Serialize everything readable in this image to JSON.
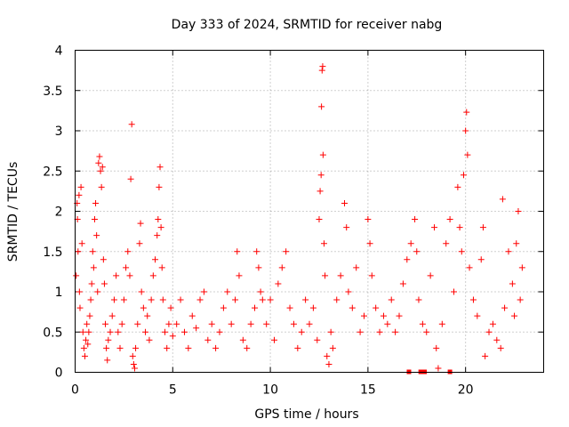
{
  "chart_data": {
    "type": "scatter",
    "title": "Day 333 of 2024, SRMTID for receiver nabg",
    "xlabel": "GPS time / hours",
    "ylabel": "SRMTID / TECUs",
    "xlim": [
      0,
      24
    ],
    "ylim": [
      0,
      4
    ],
    "xticks": [
      0,
      5,
      10,
      15,
      20
    ],
    "xtick_labels": [
      "0",
      "5",
      "10",
      "15",
      "20"
    ],
    "yticks": [
      0,
      0.5,
      1,
      1.5,
      2,
      2.5,
      3,
      3.5,
      4
    ],
    "ytick_labels": [
      "0",
      "0.5",
      "1",
      "1.5",
      "2",
      "2.5",
      "3",
      "3.5",
      "4"
    ],
    "grid": true,
    "marker": "+",
    "color": "#ff0000",
    "series": [
      {
        "name": "nabg",
        "points": [
          [
            0.05,
            1.2
          ],
          [
            0.1,
            2.1
          ],
          [
            0.12,
            1.9
          ],
          [
            0.15,
            1.5
          ],
          [
            0.2,
            2.2
          ],
          [
            0.22,
            1.0
          ],
          [
            0.25,
            0.8
          ],
          [
            0.3,
            2.3
          ],
          [
            0.35,
            1.6
          ],
          [
            0.4,
            0.5
          ],
          [
            0.45,
            0.3
          ],
          [
            0.5,
            0.2
          ],
          [
            0.55,
            0.4
          ],
          [
            0.6,
            0.6
          ],
          [
            0.65,
            0.35
          ],
          [
            0.7,
            0.5
          ],
          [
            0.75,
            0.7
          ],
          [
            0.8,
            0.9
          ],
          [
            0.85,
            1.1
          ],
          [
            0.9,
            1.5
          ],
          [
            0.95,
            1.3
          ],
          [
            1.0,
            1.9
          ],
          [
            1.05,
            2.1
          ],
          [
            1.1,
            1.7
          ],
          [
            1.15,
            1.0
          ],
          [
            1.2,
            2.6
          ],
          [
            1.25,
            2.68
          ],
          [
            1.3,
            2.5
          ],
          [
            1.35,
            2.3
          ],
          [
            1.4,
            2.55
          ],
          [
            1.45,
            1.4
          ],
          [
            1.5,
            1.1
          ],
          [
            1.55,
            0.6
          ],
          [
            1.6,
            0.3
          ],
          [
            1.65,
            0.15
          ],
          [
            1.7,
            0.4
          ],
          [
            1.8,
            0.5
          ],
          [
            1.9,
            0.7
          ],
          [
            2.0,
            0.9
          ],
          [
            2.1,
            1.2
          ],
          [
            2.2,
            0.5
          ],
          [
            2.3,
            0.3
          ],
          [
            2.4,
            0.6
          ],
          [
            2.5,
            0.9
          ],
          [
            2.6,
            1.3
          ],
          [
            2.7,
            1.5
          ],
          [
            2.8,
            1.2
          ],
          [
            2.85,
            2.4
          ],
          [
            2.9,
            3.08
          ],
          [
            2.95,
            0.2
          ],
          [
            3.0,
            0.1
          ],
          [
            3.05,
            0.05
          ],
          [
            3.1,
            0.3
          ],
          [
            3.2,
            0.6
          ],
          [
            3.3,
            1.6
          ],
          [
            3.35,
            1.85
          ],
          [
            3.4,
            1.0
          ],
          [
            3.5,
            0.8
          ],
          [
            3.6,
            0.5
          ],
          [
            3.7,
            0.7
          ],
          [
            3.8,
            0.4
          ],
          [
            3.9,
            0.9
          ],
          [
            4.0,
            1.2
          ],
          [
            4.1,
            1.4
          ],
          [
            4.2,
            1.7
          ],
          [
            4.25,
            1.9
          ],
          [
            4.3,
            2.3
          ],
          [
            4.35,
            2.55
          ],
          [
            4.4,
            1.8
          ],
          [
            4.45,
            1.3
          ],
          [
            4.5,
            0.9
          ],
          [
            4.6,
            0.5
          ],
          [
            4.7,
            0.3
          ],
          [
            4.8,
            0.6
          ],
          [
            4.9,
            0.8
          ],
          [
            5.0,
            0.45
          ],
          [
            5.2,
            0.6
          ],
          [
            5.4,
            0.9
          ],
          [
            5.6,
            0.5
          ],
          [
            5.8,
            0.3
          ],
          [
            6.0,
            0.7
          ],
          [
            6.2,
            0.55
          ],
          [
            6.4,
            0.9
          ],
          [
            6.6,
            1.0
          ],
          [
            6.8,
            0.4
          ],
          [
            7.0,
            0.6
          ],
          [
            7.2,
            0.3
          ],
          [
            7.4,
            0.5
          ],
          [
            7.6,
            0.8
          ],
          [
            7.8,
            1.0
          ],
          [
            8.0,
            0.6
          ],
          [
            8.2,
            0.9
          ],
          [
            8.3,
            1.5
          ],
          [
            8.4,
            1.2
          ],
          [
            8.6,
            0.4
          ],
          [
            8.8,
            0.3
          ],
          [
            9.0,
            0.6
          ],
          [
            9.2,
            0.8
          ],
          [
            9.3,
            1.5
          ],
          [
            9.4,
            1.3
          ],
          [
            9.5,
            1.0
          ],
          [
            9.6,
            0.9
          ],
          [
            9.8,
            0.6
          ],
          [
            10.0,
            0.9
          ],
          [
            10.2,
            0.4
          ],
          [
            10.4,
            1.1
          ],
          [
            10.6,
            1.3
          ],
          [
            10.8,
            1.5
          ],
          [
            11.0,
            0.8
          ],
          [
            11.2,
            0.6
          ],
          [
            11.4,
            0.3
          ],
          [
            11.6,
            0.5
          ],
          [
            11.8,
            0.9
          ],
          [
            12.0,
            0.6
          ],
          [
            12.2,
            0.8
          ],
          [
            12.4,
            0.4
          ],
          [
            12.5,
            1.9
          ],
          [
            12.55,
            2.25
          ],
          [
            12.6,
            2.45
          ],
          [
            12.62,
            3.3
          ],
          [
            12.65,
            3.75
          ],
          [
            12.68,
            3.8
          ],
          [
            12.7,
            2.7
          ],
          [
            12.75,
            1.6
          ],
          [
            12.8,
            1.2
          ],
          [
            12.9,
            0.2
          ],
          [
            13.0,
            0.1
          ],
          [
            13.1,
            0.5
          ],
          [
            13.2,
            0.3
          ],
          [
            13.4,
            0.9
          ],
          [
            13.6,
            1.2
          ],
          [
            13.8,
            2.1
          ],
          [
            13.9,
            1.8
          ],
          [
            14.0,
            1.0
          ],
          [
            14.2,
            0.8
          ],
          [
            14.4,
            1.3
          ],
          [
            14.6,
            0.5
          ],
          [
            14.8,
            0.7
          ],
          [
            15.0,
            1.9
          ],
          [
            15.1,
            1.6
          ],
          [
            15.2,
            1.2
          ],
          [
            15.4,
            0.8
          ],
          [
            15.6,
            0.5
          ],
          [
            15.8,
            0.7
          ],
          [
            16.0,
            0.6
          ],
          [
            16.2,
            0.9
          ],
          [
            16.4,
            0.5
          ],
          [
            16.6,
            0.7
          ],
          [
            16.8,
            1.1
          ],
          [
            17.0,
            1.4
          ],
          [
            17.2,
            1.6
          ],
          [
            17.4,
            1.9
          ],
          [
            17.5,
            1.5
          ],
          [
            17.6,
            0.9
          ],
          [
            17.8,
            0.6
          ],
          [
            18.0,
            0.5
          ],
          [
            18.2,
            1.2
          ],
          [
            18.4,
            1.8
          ],
          [
            18.5,
            0.3
          ],
          [
            18.6,
            0.05
          ],
          [
            18.8,
            0.6
          ],
          [
            19.0,
            1.6
          ],
          [
            19.2,
            1.9
          ],
          [
            19.4,
            1.0
          ],
          [
            19.6,
            2.3
          ],
          [
            19.7,
            1.8
          ],
          [
            19.8,
            1.5
          ],
          [
            19.9,
            2.45
          ],
          [
            20.0,
            3.0
          ],
          [
            20.05,
            3.23
          ],
          [
            20.1,
            2.7
          ],
          [
            20.2,
            1.3
          ],
          [
            20.4,
            0.9
          ],
          [
            20.6,
            0.7
          ],
          [
            20.8,
            1.4
          ],
          [
            20.9,
            1.8
          ],
          [
            21.0,
            0.2
          ],
          [
            21.2,
            0.5
          ],
          [
            21.4,
            0.6
          ],
          [
            21.6,
            0.4
          ],
          [
            21.8,
            0.3
          ],
          [
            21.9,
            2.15
          ],
          [
            22.0,
            0.8
          ],
          [
            22.2,
            1.5
          ],
          [
            22.4,
            1.1
          ],
          [
            22.5,
            0.7
          ],
          [
            22.6,
            1.6
          ],
          [
            22.7,
            2.0
          ],
          [
            22.8,
            0.9
          ],
          [
            22.9,
            1.3
          ]
        ]
      }
    ],
    "zero_markers": [
      17.1,
      17.7,
      17.9,
      19.2
    ]
  }
}
